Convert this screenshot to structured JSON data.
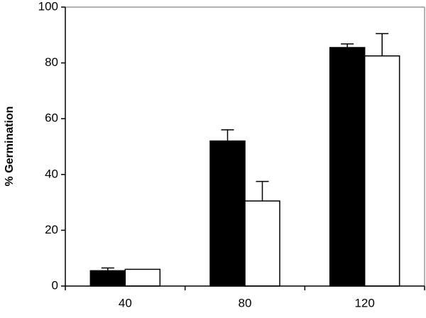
{
  "chart_data": {
    "type": "bar",
    "y_label": "% Germination",
    "categories": [
      "40",
      "80",
      "120"
    ],
    "series": [
      {
        "color": "#000000",
        "values": [
          5.5,
          52,
          85.5
        ],
        "errors": [
          1,
          4,
          1.3
        ]
      },
      {
        "color": "#ffffff",
        "values": [
          6,
          30.5,
          82.5
        ],
        "errors": [
          null,
          7,
          8
        ]
      }
    ],
    "ylim": [
      0,
      100
    ],
    "yticks": [
      0,
      20,
      40,
      60,
      80,
      100
    ]
  }
}
